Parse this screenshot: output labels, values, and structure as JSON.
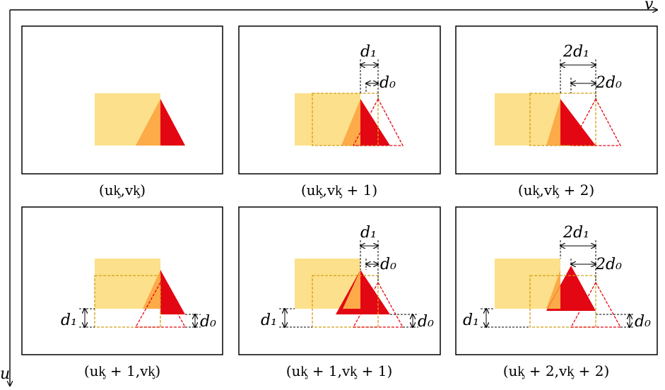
{
  "axes": {
    "v_label": "v",
    "u_label": "u"
  },
  "annotations": {
    "d1": "d₁",
    "d0": "d₀",
    "two_d1": "2d₁",
    "two_d0": "2d₀"
  },
  "captions": [
    "(uᶄ,vᶄ)",
    "(uᶄ,vᶄ + 1)",
    "(uᶄ,vᶄ + 2)",
    "(uᶄ + 1,vᶄ)",
    "(uᶄ + 1,vᶄ + 1)",
    "(uᶄ + 2,vᶄ + 2)"
  ],
  "colors": {
    "rect_fill": "#FCE08B",
    "overlap_fill": "#FDAA48",
    "triangle_fill": "#E30613",
    "rect_dash": "#D4A017",
    "tri_dash": "#E30613"
  }
}
